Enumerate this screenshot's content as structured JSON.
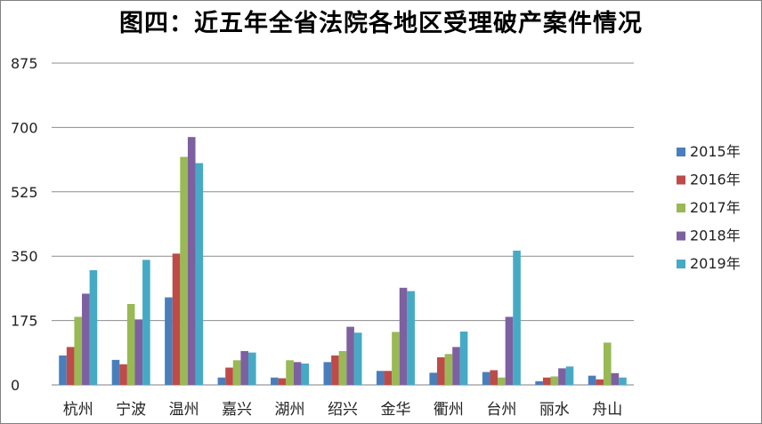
{
  "chart_data": {
    "type": "bar",
    "title": "图四：近五年全省法院各地区受理破产案件情况",
    "xlabel": "",
    "ylabel": "",
    "ylim": [
      0,
      875
    ],
    "yticks": [
      0,
      175,
      350,
      525,
      700,
      875
    ],
    "grid": true,
    "legend_position": "right",
    "categories": [
      "杭州",
      "宁波",
      "温州",
      "嘉兴",
      "湖州",
      "绍兴",
      "金华",
      "衢州",
      "台州",
      "丽水",
      "舟山"
    ],
    "series": [
      {
        "name": "2015年",
        "color": "#4a7ebb",
        "values": [
          80,
          68,
          238,
          20,
          20,
          62,
          38,
          33,
          35,
          10,
          25
        ]
      },
      {
        "name": "2016年",
        "color": "#be4b48",
        "values": [
          103,
          56,
          357,
          47,
          18,
          80,
          38,
          75,
          40,
          20,
          15
        ]
      },
      {
        "name": "2017年",
        "color": "#98b954",
        "values": [
          185,
          220,
          620,
          67,
          67,
          92,
          144,
          84,
          20,
          23,
          115
        ]
      },
      {
        "name": "2018年",
        "color": "#7d60a0",
        "values": [
          248,
          178,
          674,
          92,
          62,
          158,
          264,
          103,
          185,
          45,
          32
        ]
      },
      {
        "name": "2019年",
        "color": "#46aac5",
        "values": [
          312,
          340,
          603,
          88,
          58,
          142,
          255,
          145,
          365,
          50,
          20
        ]
      }
    ]
  }
}
